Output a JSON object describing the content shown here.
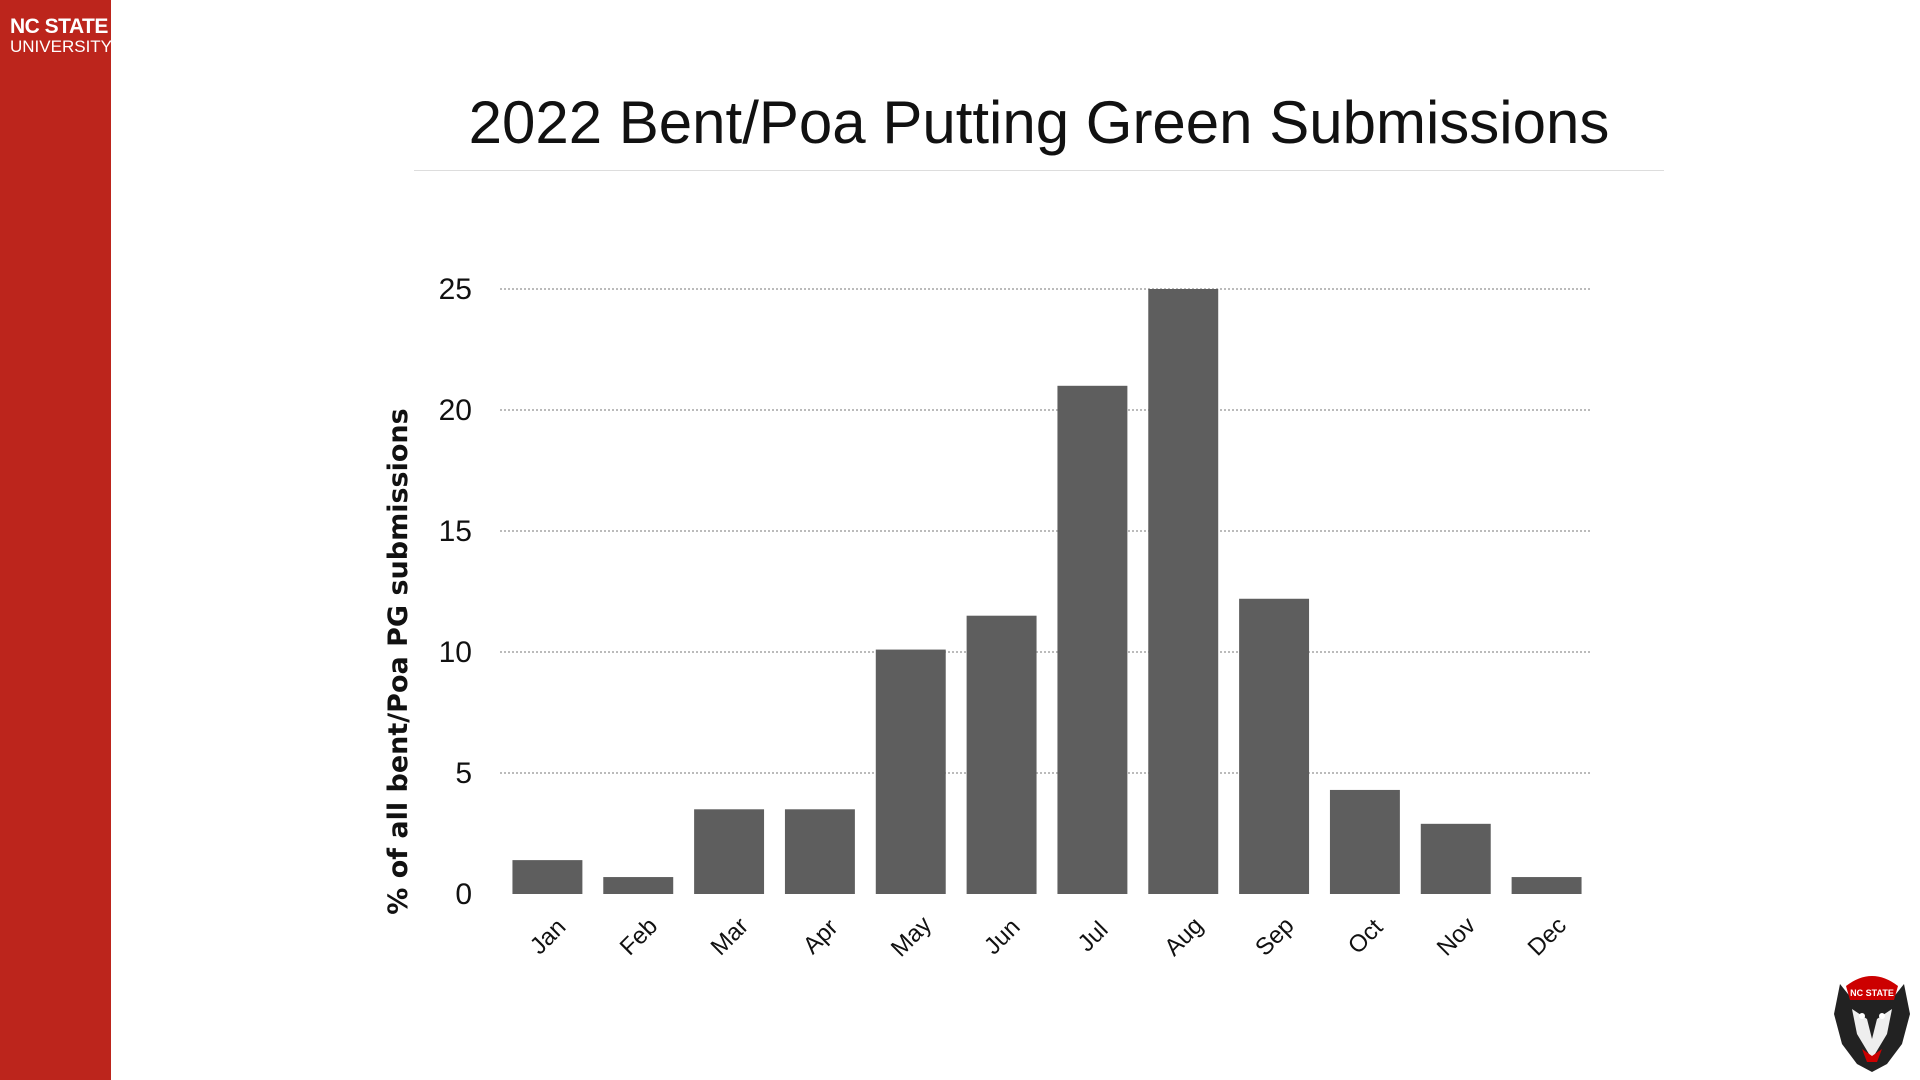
{
  "brand": {
    "line1": "NC STATE",
    "line2": "UNIVERSITY",
    "color": "#bc251c",
    "mascot_text": "NC STATE"
  },
  "chart_data": {
    "type": "bar",
    "title": "2022 Bent/Poa Putting Green Submissions",
    "xlabel": "",
    "ylabel": "% of all bent/Poa PG submissions",
    "categories": [
      "Jan",
      "Feb",
      "Mar",
      "Apr",
      "May",
      "Jun",
      "Jul",
      "Aug",
      "Sep",
      "Oct",
      "Nov",
      "Dec"
    ],
    "values": [
      1.4,
      0.7,
      3.5,
      3.5,
      10.1,
      11.5,
      21.0,
      25.0,
      12.2,
      4.3,
      2.9,
      0.7
    ],
    "ylim": [
      0,
      25
    ],
    "yticks": [
      0,
      5,
      10,
      15,
      20,
      25
    ],
    "grid": "horizontal dotted",
    "bar_color": "#5e5e5e"
  }
}
